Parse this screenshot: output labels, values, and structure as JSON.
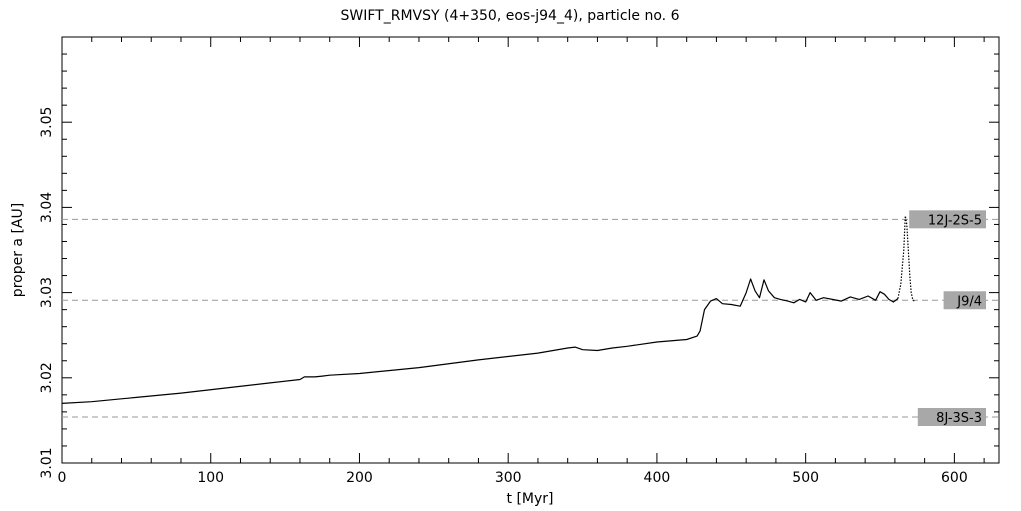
{
  "chart_data": {
    "type": "line",
    "title": "SWIFT_RMVSY (4+350, eos-j94_4), particle no. 6",
    "xlabel": "t [Myr]",
    "ylabel": "proper a [AU]",
    "xlim": [
      0,
      630
    ],
    "ylim": [
      3.01,
      3.06
    ],
    "x_ticks": [
      0,
      100,
      200,
      300,
      400,
      500,
      600
    ],
    "x_tick_labels": [
      "0",
      "100",
      "200",
      "300",
      "400",
      "500",
      "600"
    ],
    "y_ticks": [
      3.01,
      3.02,
      3.03,
      3.04,
      3.05
    ],
    "y_tick_labels": [
      "3.01",
      "3.02",
      "3.03",
      "3.04",
      "3.05"
    ],
    "grid": false,
    "resonances": [
      {
        "label": "12J-2S-5",
        "a": 3.0386
      },
      {
        "label": "J9/4",
        "a": 3.0291
      },
      {
        "label": "8J-3S-3",
        "a": 3.0154
      }
    ],
    "series": [
      {
        "style": "solid",
        "x": [
          0,
          20,
          50,
          80,
          110,
          140,
          160,
          163,
          166,
          170,
          175,
          180,
          200,
          240,
          280,
          320,
          340,
          345,
          350,
          360,
          370,
          380,
          400,
          420,
          427,
          429,
          432,
          436,
          440,
          444,
          450,
          456,
          460,
          463,
          466,
          469,
          472,
          475,
          479,
          483,
          488,
          492,
          496,
          500,
          503,
          507,
          512,
          518,
          524,
          530,
          536,
          542,
          547,
          550,
          553,
          556,
          559,
          562
        ],
        "y": [
          3.017,
          3.0172,
          3.0177,
          3.0182,
          3.0188,
          3.0194,
          3.0198,
          3.0201,
          3.0201,
          3.0201,
          3.0202,
          3.0203,
          3.0205,
          3.0212,
          3.0221,
          3.0229,
          3.0235,
          3.0236,
          3.0233,
          3.0232,
          3.0235,
          3.0237,
          3.0242,
          3.0245,
          3.0249,
          3.0255,
          3.028,
          3.029,
          3.0293,
          3.0287,
          3.0286,
          3.0284,
          3.03,
          3.0316,
          3.0302,
          3.0294,
          3.0315,
          3.0302,
          3.0294,
          3.0292,
          3.029,
          3.0288,
          3.0292,
          3.0289,
          3.03,
          3.0291,
          3.0294,
          3.0292,
          3.029,
          3.0295,
          3.0292,
          3.0296,
          3.0291,
          3.0301,
          3.0298,
          3.0292,
          3.0289,
          3.0293
        ]
      },
      {
        "style": "dotted",
        "x": [
          562,
          564,
          566,
          567,
          568,
          569,
          570,
          571,
          572,
          573
        ],
        "y": [
          3.0293,
          3.031,
          3.035,
          3.039,
          3.038,
          3.035,
          3.032,
          3.03,
          3.0292,
          3.029
        ]
      }
    ]
  }
}
